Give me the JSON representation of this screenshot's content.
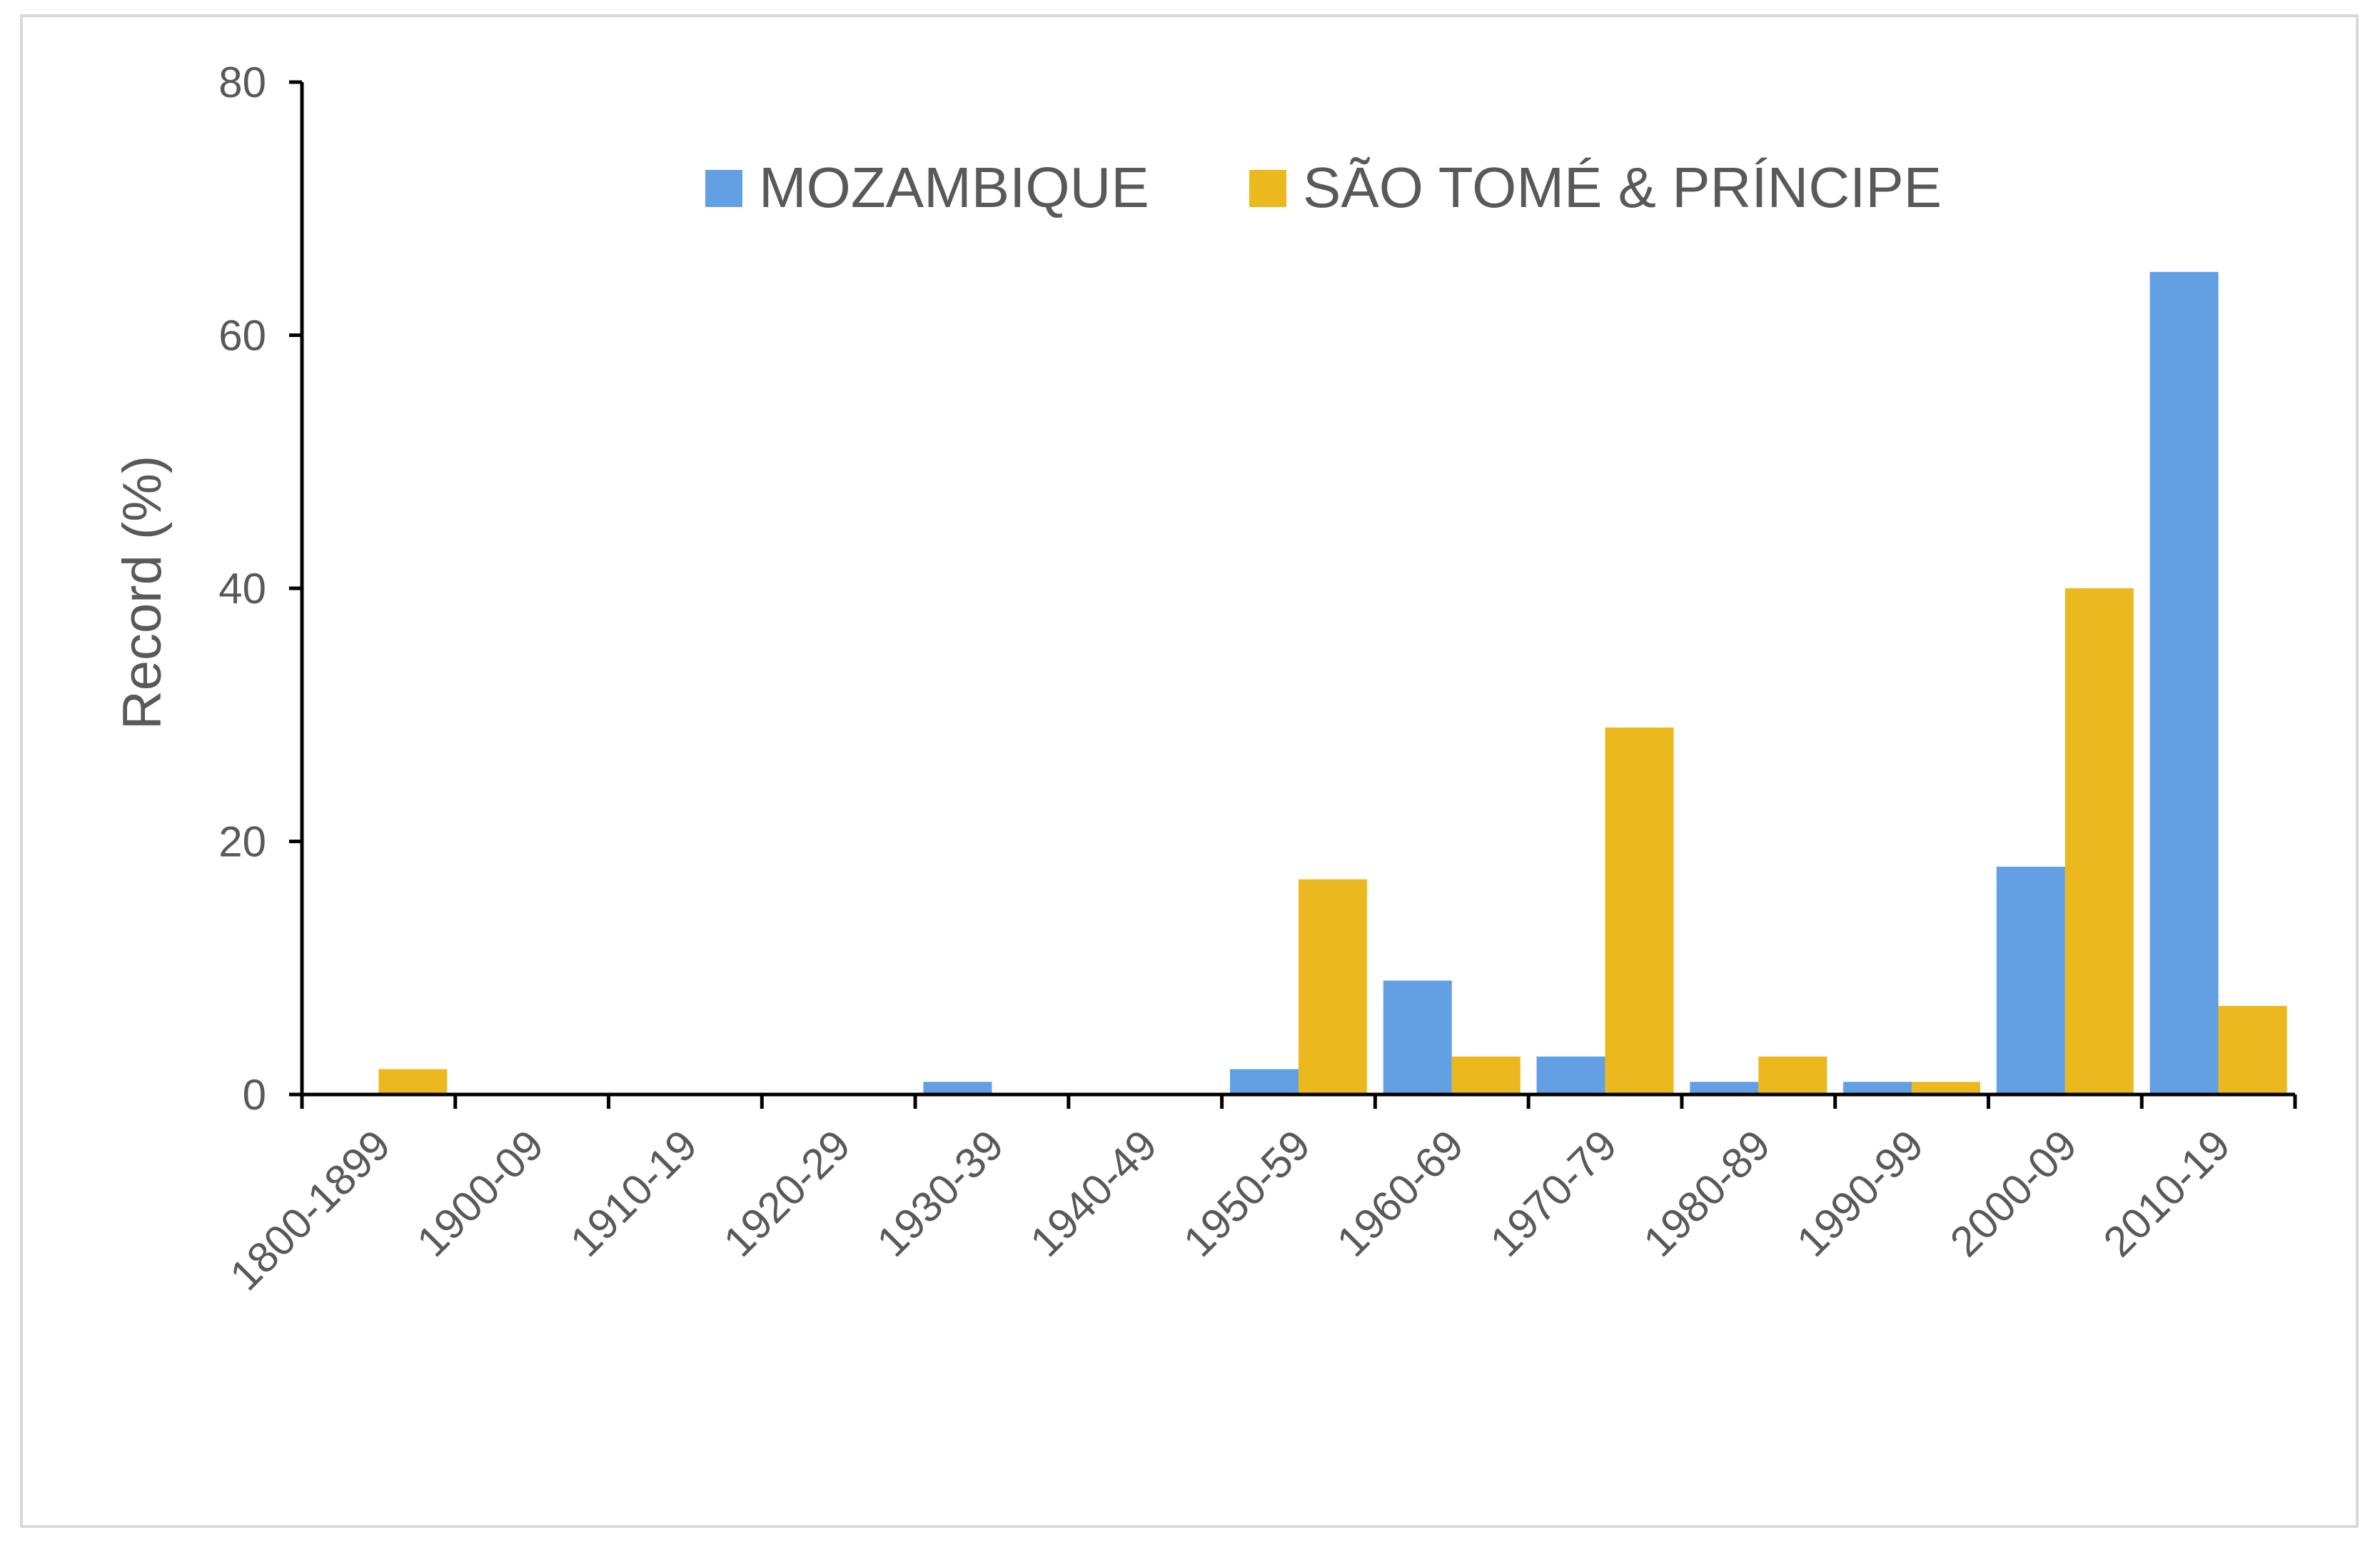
{
  "chart_data": {
    "type": "bar",
    "title": "",
    "xlabel": "",
    "ylabel": "Record (%)",
    "ylim": [
      0,
      80
    ],
    "yticks": [
      0,
      20,
      40,
      60,
      80
    ],
    "grid": false,
    "legend_position": "top-center",
    "categories": [
      "1800-1899",
      "1900-09",
      "1910-19",
      "1920-29",
      "1930-39",
      "1940-49",
      "1950-59",
      "1960-69",
      "1970-79",
      "1980-89",
      "1990-99",
      "2000-09",
      "2010-19"
    ],
    "series": [
      {
        "name": "MOZAMBIQUE",
        "color": "#629FE3",
        "values": [
          0,
          0,
          0,
          0,
          1,
          0,
          2,
          9,
          3,
          1,
          1,
          18,
          65
        ]
      },
      {
        "name": "SÃO TOMÉ & PRÍNCIPE",
        "color": "#EBB81D",
        "values": [
          2,
          0,
          0,
          0,
          0,
          0,
          17,
          3,
          29,
          3,
          1,
          40,
          7
        ]
      }
    ]
  }
}
